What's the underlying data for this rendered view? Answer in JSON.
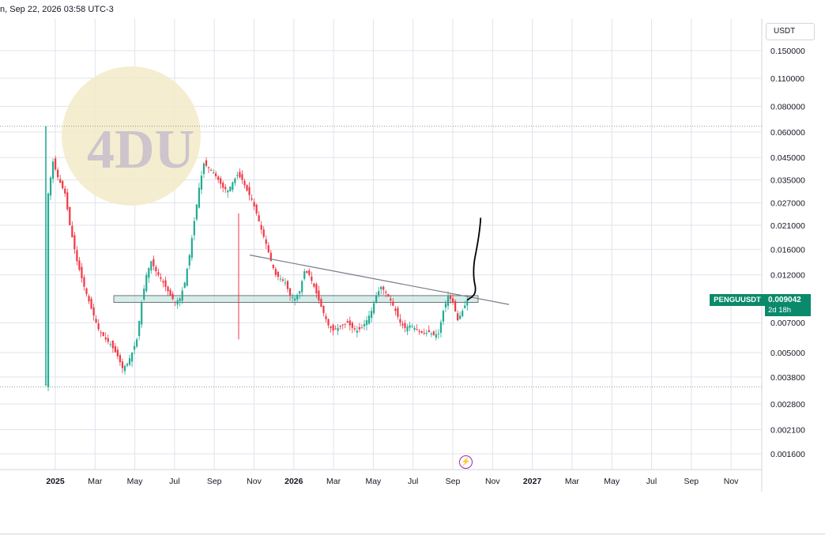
{
  "header": {
    "title_fragment": "n, Sep 22, 2026 03:58 UTC-3"
  },
  "price_scale": {
    "currency": "USDT"
  },
  "symbol": {
    "name": "PENGUUSDT",
    "last_price": "0.009042",
    "countdown": "2d 18h",
    "color": "#0b8a6b"
  },
  "icons": {
    "lightning": "lightning-icon",
    "watermark": "4du-logo"
  },
  "watermark": {
    "text": "4DU"
  },
  "colors": {
    "up": "#22ab94",
    "down": "#f23645",
    "grid": "#e0e3eb",
    "plot_bg": "#ffffff",
    "zone_fill": "#b2dfdb",
    "trendline": "#787b86",
    "projection": "#000000"
  },
  "chart_data": {
    "type": "candlestick",
    "scale": "log",
    "y_ticks": [
      "0.150000",
      "0.110000",
      "0.080000",
      "0.060000",
      "0.045000",
      "0.035000",
      "0.027000",
      "0.021000",
      "0.016000",
      "0.012000",
      "0.007000",
      "0.005000",
      "0.003800",
      "0.002800",
      "0.002100",
      "0.001600"
    ],
    "x_ticks": [
      {
        "label": "2025",
        "bold": true
      },
      {
        "label": "Mar"
      },
      {
        "label": "May"
      },
      {
        "label": "Jul"
      },
      {
        "label": "Sep"
      },
      {
        "label": "Nov"
      },
      {
        "label": "2026",
        "bold": true
      },
      {
        "label": "Mar"
      },
      {
        "label": "May"
      },
      {
        "label": "Jul"
      },
      {
        "label": "Sep"
      },
      {
        "label": "Nov"
      },
      {
        "label": "2027",
        "bold": true
      },
      {
        "label": "Mar"
      },
      {
        "label": "May"
      },
      {
        "label": "Jul"
      },
      {
        "label": "Sep"
      },
      {
        "label": "Nov"
      }
    ],
    "ylim": [
      0.00145,
      0.17
    ],
    "path_points": [
      [
        0,
        0.0035
      ],
      [
        1,
        0.03
      ],
      [
        3,
        0.043
      ],
      [
        5,
        0.036
      ],
      [
        8,
        0.03
      ],
      [
        10,
        0.021
      ],
      [
        13,
        0.014
      ],
      [
        16,
        0.0105
      ],
      [
        19,
        0.0082
      ],
      [
        22,
        0.0065
      ],
      [
        25,
        0.0058
      ],
      [
        27,
        0.0055
      ],
      [
        30,
        0.0048
      ],
      [
        32,
        0.0042
      ],
      [
        34,
        0.0044
      ],
      [
        36,
        0.005
      ],
      [
        38,
        0.0058
      ],
      [
        40,
        0.0088
      ],
      [
        42,
        0.012
      ],
      [
        44,
        0.014
      ],
      [
        46,
        0.0125
      ],
      [
        49,
        0.011
      ],
      [
        52,
        0.0095
      ],
      [
        54,
        0.0088
      ],
      [
        56,
        0.0092
      ],
      [
        58,
        0.011
      ],
      [
        60,
        0.015
      ],
      [
        62,
        0.022
      ],
      [
        64,
        0.032
      ],
      [
        66,
        0.042
      ],
      [
        68,
        0.04
      ],
      [
        70,
        0.038
      ],
      [
        72,
        0.035
      ],
      [
        74,
        0.032
      ],
      [
        76,
        0.031
      ],
      [
        78,
        0.034
      ],
      [
        80,
        0.037
      ],
      [
        82,
        0.035
      ],
      [
        84,
        0.031
      ],
      [
        86,
        0.028
      ],
      [
        88,
        0.024
      ],
      [
        90,
        0.02
      ],
      [
        92,
        0.017
      ],
      [
        94,
        0.014
      ],
      [
        96,
        0.012
      ],
      [
        98,
        0.0115
      ],
      [
        100,
        0.011
      ],
      [
        102,
        0.0095
      ],
      [
        104,
        0.0092
      ],
      [
        106,
        0.01
      ],
      [
        108,
        0.0125
      ],
      [
        110,
        0.012
      ],
      [
        112,
        0.0105
      ],
      [
        114,
        0.009
      ],
      [
        116,
        0.0078
      ],
      [
        118,
        0.0068
      ],
      [
        120,
        0.0064
      ],
      [
        122,
        0.0066
      ],
      [
        124,
        0.0068
      ],
      [
        126,
        0.007
      ],
      [
        128,
        0.0066
      ],
      [
        130,
        0.0064
      ],
      [
        132,
        0.0066
      ],
      [
        134,
        0.0072
      ],
      [
        136,
        0.008
      ],
      [
        138,
        0.0095
      ],
      [
        140,
        0.0105
      ],
      [
        142,
        0.0098
      ],
      [
        144,
        0.009
      ],
      [
        146,
        0.008
      ],
      [
        148,
        0.007
      ],
      [
        150,
        0.0066
      ],
      [
        152,
        0.0068
      ],
      [
        154,
        0.0066
      ],
      [
        156,
        0.0063
      ],
      [
        158,
        0.0062
      ],
      [
        160,
        0.0063
      ],
      [
        162,
        0.0061
      ],
      [
        164,
        0.0062
      ],
      [
        166,
        0.008
      ],
      [
        168,
        0.0095
      ],
      [
        170,
        0.0088
      ],
      [
        172,
        0.0072
      ],
      [
        174,
        0.008
      ],
      [
        176,
        0.009042
      ]
    ],
    "support_zone": [
      0.0088,
      0.0095
    ],
    "trendline": [
      [
        0.015,
        0.0086
      ]
    ],
    "dotted_levels": [
      0.064,
      0.0034
    ]
  }
}
